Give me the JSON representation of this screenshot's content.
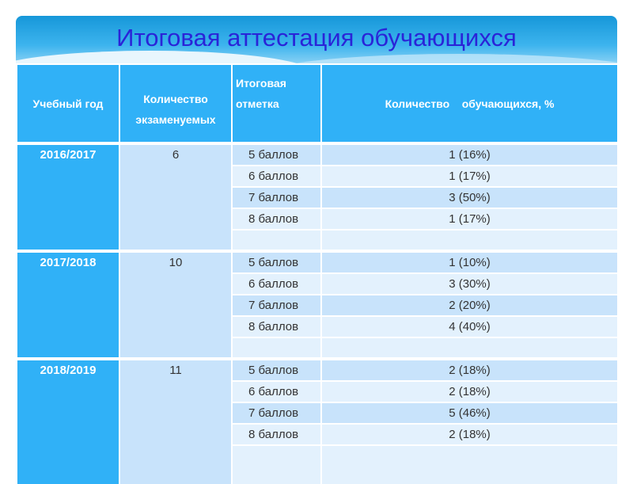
{
  "title": "Итоговая аттестация обучающихся",
  "headers": [
    "Учебный год",
    "Количество экзаменуемых",
    "Итоговая отметка",
    "Количество    обучающихся, %"
  ],
  "blocks": [
    {
      "year": "2016/2017",
      "count": "6",
      "rows": [
        {
          "mark": "5 баллов",
          "result": "1 (16%)"
        },
        {
          "mark": "6 баллов",
          "result": "1 (17%)"
        },
        {
          "mark": "7 баллов",
          "result": "3 (50%)"
        },
        {
          "mark": "8 баллов",
          "result": "1 (17%)"
        }
      ]
    },
    {
      "year": "2017/2018",
      "count": "10",
      "rows": [
        {
          "mark": "5 баллов",
          "result": "1 (10%)"
        },
        {
          "mark": "6 баллов",
          "result": "3 (30%)"
        },
        {
          "mark": "7 баллов",
          "result": "2 (20%)"
        },
        {
          "mark": "8 баллов",
          "result": "4 (40%)"
        }
      ]
    },
    {
      "year": "2018/2019",
      "count": "11",
      "rows": [
        {
          "mark": "5 баллов",
          "result": "2 (18%)"
        },
        {
          "mark": "6 баллов",
          "result": "2 (18%)"
        },
        {
          "mark": "7 баллов",
          "result": "5 (46%)"
        },
        {
          "mark": "8 баллов",
          "result": "2 (18%)"
        }
      ]
    }
  ],
  "colors": {
    "title": "#2a24d8",
    "header": "#30b1f7",
    "row_dark": "#c8e3fb",
    "row_light": "#e3f1fd"
  }
}
